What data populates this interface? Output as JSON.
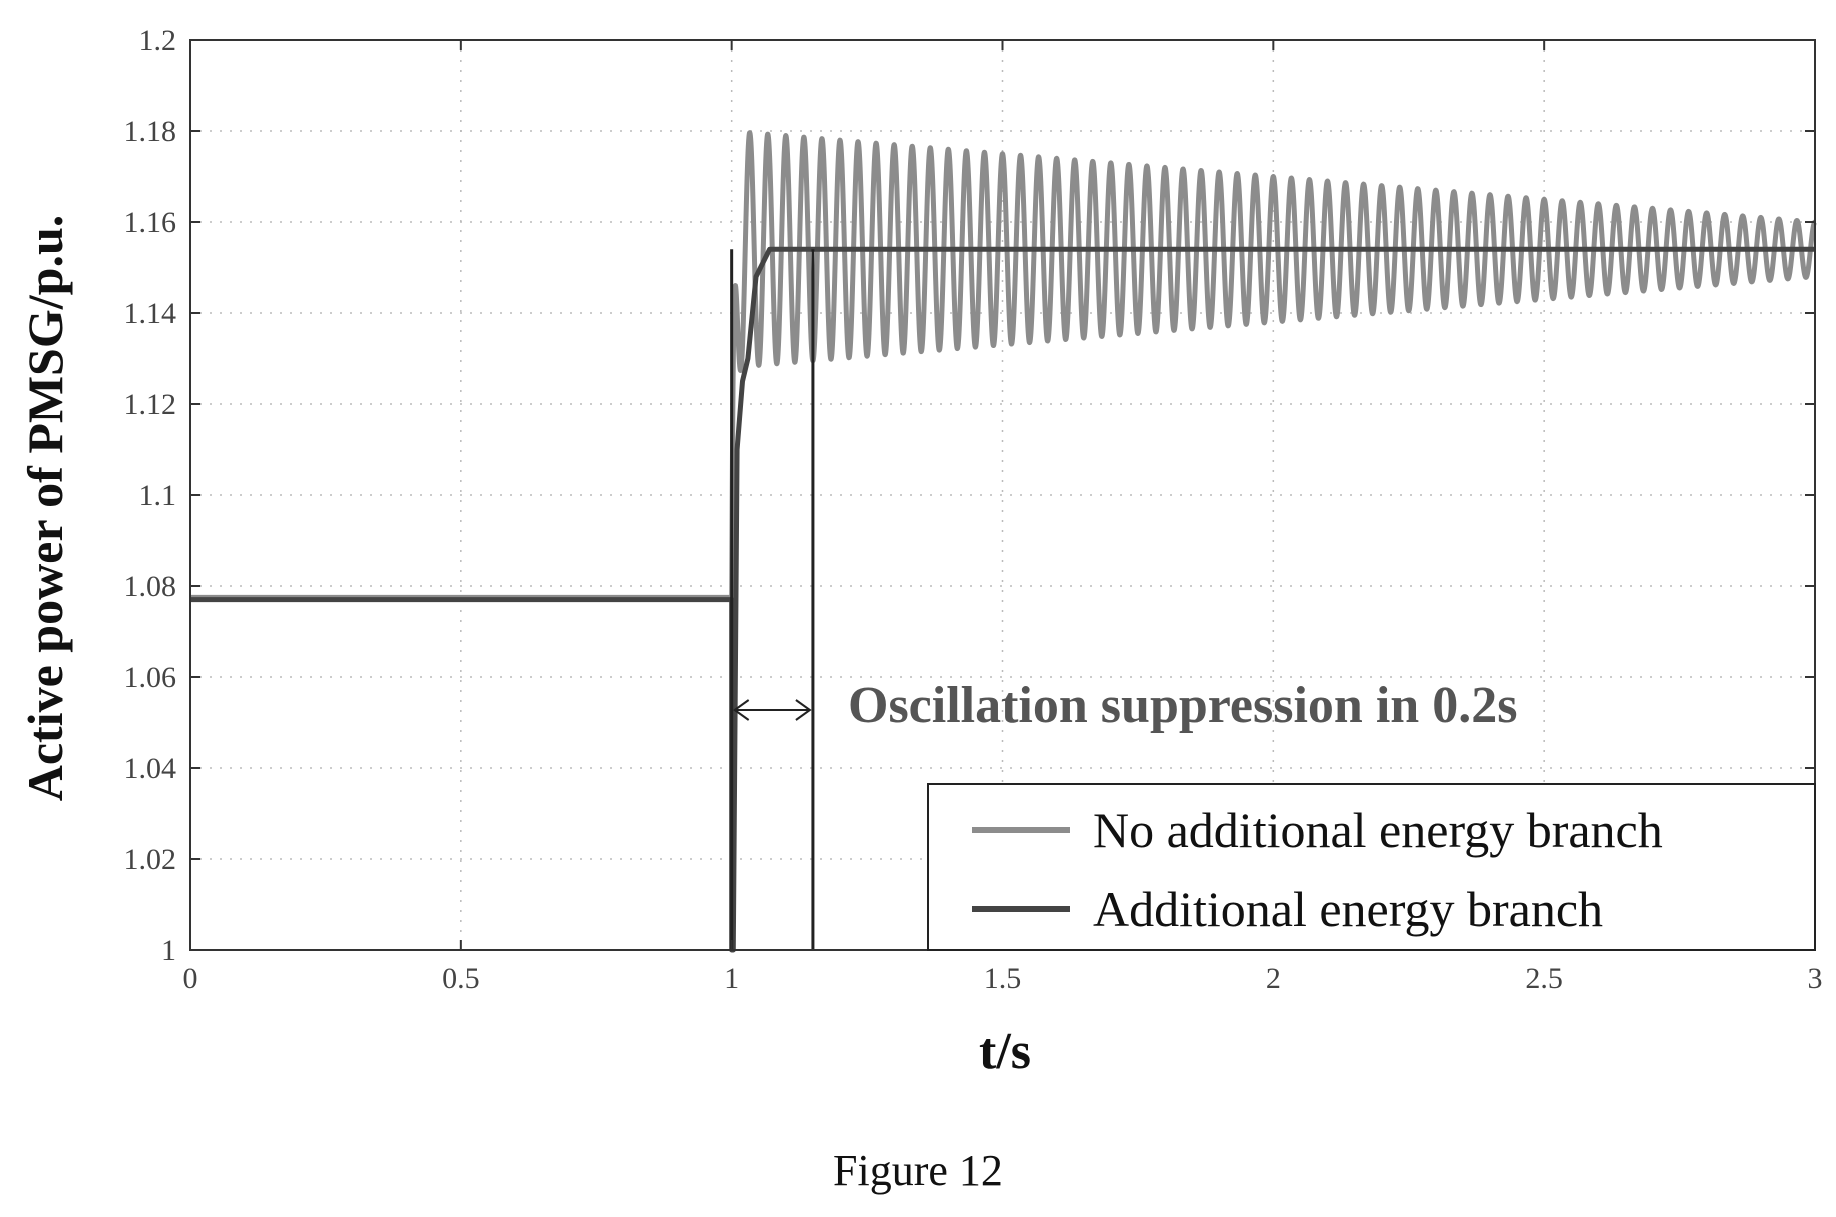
{
  "caption": "Figure 12",
  "chart_data": {
    "type": "line",
    "title": "",
    "xlabel": "t/s",
    "ylabel": "Active power of PMSG/p.u.",
    "xlim": [
      0,
      3
    ],
    "ylim": [
      1,
      1.2
    ],
    "xticks": [
      0,
      0.5,
      1,
      1.5,
      2,
      2.5,
      3
    ],
    "xtick_labels": [
      "0",
      "0.5",
      "1",
      "1.5",
      "2",
      "2.5",
      "3"
    ],
    "yticks": [
      1,
      1.02,
      1.04,
      1.06,
      1.08,
      1.1,
      1.12,
      1.14,
      1.16,
      1.18,
      1.2
    ],
    "ytick_labels": [
      "1",
      "1.02",
      "1.04",
      "1.06",
      "1.08",
      "1.1",
      "1.12",
      "1.14",
      "1.16",
      "1.18",
      "1.2"
    ],
    "grid": true,
    "legend_position": "bottom-right",
    "annotation": {
      "text": "Oscillation suppression in 0.2s",
      "x_start": 1.0,
      "x_end": 1.15
    },
    "marker_lines_x": [
      1.0,
      1.15
    ],
    "series": [
      {
        "name": "No additional energy branch",
        "color": "#8c8c8c",
        "initial_value": 1.0775,
        "step_time": 1.0,
        "final_mean": 1.154,
        "initial_amplitude": 0.026,
        "final_amplitude": 0.006,
        "oscillation_frequency_hz": 30,
        "x_end": 3
      },
      {
        "name": "Additional energy branch",
        "color": "#444444",
        "points": [
          [
            0,
            1.077
          ],
          [
            1.0,
            1.077
          ],
          [
            1.0,
            1.0
          ],
          [
            1.003,
            1.0
          ],
          [
            1.01,
            1.11
          ],
          [
            1.02,
            1.125
          ],
          [
            1.03,
            1.13
          ],
          [
            1.045,
            1.148
          ],
          [
            1.07,
            1.154
          ],
          [
            3,
            1.154
          ]
        ]
      }
    ]
  },
  "colors": {
    "axis": "#333333",
    "grid": "#bbbbbb"
  }
}
